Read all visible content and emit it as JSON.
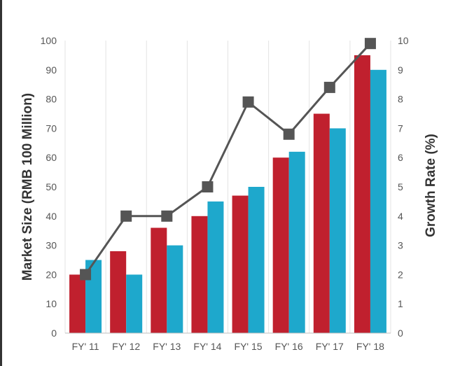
{
  "chart_data": {
    "type": "bar",
    "categories": [
      "FY' 11",
      "FY' 12",
      "FY' 13",
      "FY' 14",
      "FY' 15",
      "FY' 16",
      "FY' 17",
      "FY' 18"
    ],
    "series": [
      {
        "type": "bar",
        "axis": "left",
        "color": "#c0202e",
        "values": [
          20,
          28,
          36,
          40,
          47,
          60,
          75,
          95
        ]
      },
      {
        "type": "bar",
        "axis": "left",
        "color": "#1ea8cc",
        "values": [
          25,
          20,
          30,
          45,
          50,
          62,
          70,
          90
        ]
      },
      {
        "type": "line",
        "axis": "right",
        "color": "#555555",
        "marker": "square",
        "values": [
          2,
          4,
          4,
          5,
          7.9,
          6.8,
          8.4,
          9.9
        ]
      }
    ],
    "ylabel": "Market Size (RMB 100 Million)",
    "y2label": "Growth  Rate (%)",
    "ylim": [
      0,
      100
    ],
    "y2lim": [
      0,
      10
    ],
    "yticks": [
      "0",
      "10",
      "20",
      "30",
      "40",
      "50",
      "60",
      "70",
      "80",
      "90",
      "100"
    ],
    "y2ticks": [
      "0",
      "1",
      "2",
      "3",
      "4",
      "5",
      "6",
      "7",
      "8",
      "9",
      "10"
    ],
    "grid": "vertical"
  }
}
